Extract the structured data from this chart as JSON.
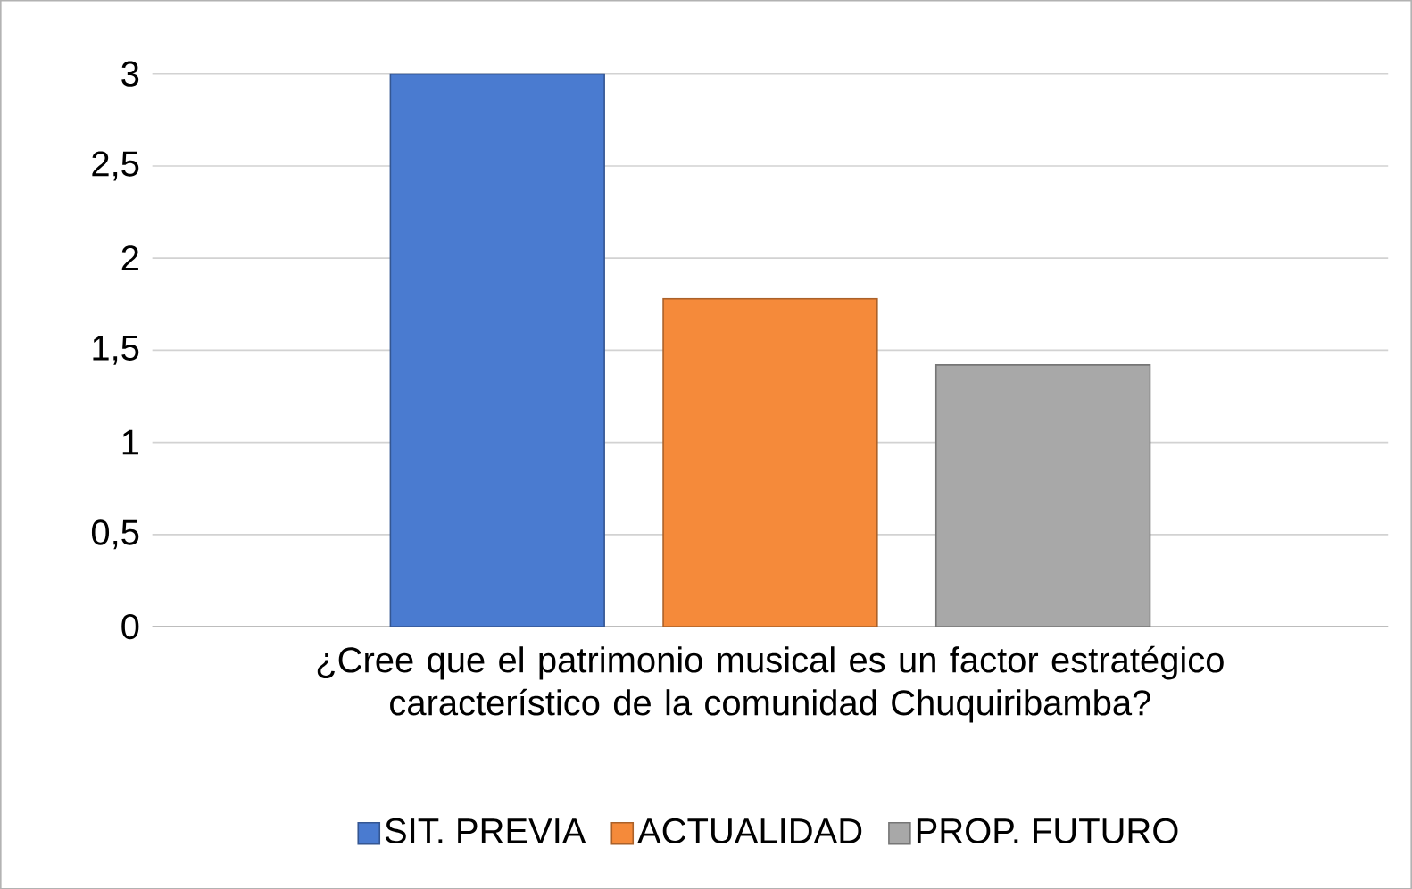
{
  "chart_data": {
    "type": "bar",
    "categories": [
      "¿Cree que el patrimonio musical es un factor estratégico característico de la comunidad Chuquiribamba?"
    ],
    "series": [
      {
        "name": "SIT. PREVIA",
        "color": "#4a7bd0",
        "values": [
          3
        ]
      },
      {
        "name": "ACTUALIDAD",
        "color": "#f58a3a",
        "values": [
          1.78
        ]
      },
      {
        "name": "PROP. FUTURO",
        "color": "#a8a8a8",
        "values": [
          1.42
        ]
      }
    ],
    "ylim": [
      0,
      3
    ],
    "yticks": [
      0,
      {
        "value": 0.5,
        "label": "0,5"
      },
      1,
      {
        "value": 1.5,
        "label": "1,5"
      },
      2,
      {
        "value": 2.5,
        "label": "2,5"
      },
      3
    ],
    "grid": "y",
    "legend": "bottom"
  }
}
